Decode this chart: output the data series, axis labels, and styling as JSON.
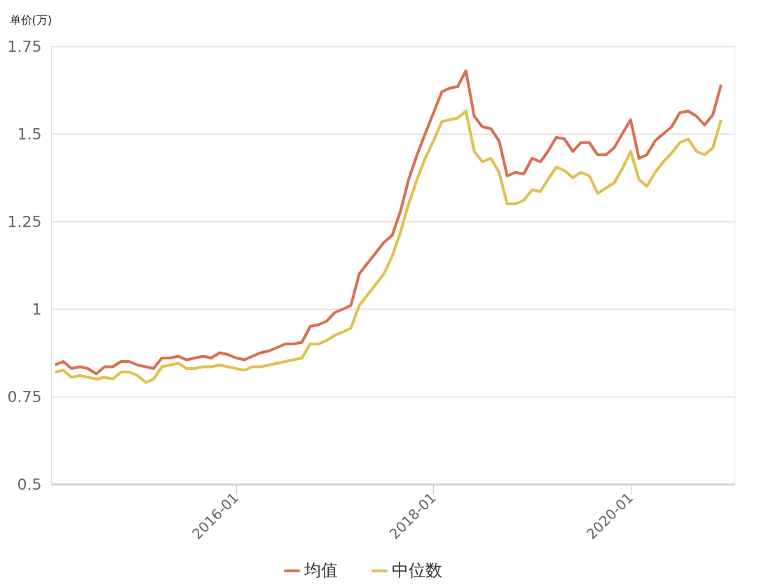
{
  "chart_data": {
    "type": "line",
    "ylabel": "单价(万)",
    "x": [
      "2014-03",
      "2014-04",
      "2014-05",
      "2014-06",
      "2014-07",
      "2014-08",
      "2014-09",
      "2014-10",
      "2014-11",
      "2014-12",
      "2015-01",
      "2015-02",
      "2015-03",
      "2015-04",
      "2015-05",
      "2015-06",
      "2015-07",
      "2015-08",
      "2015-09",
      "2015-10",
      "2015-11",
      "2015-12",
      "2016-01",
      "2016-02",
      "2016-03",
      "2016-04",
      "2016-05",
      "2016-06",
      "2016-07",
      "2016-08",
      "2016-09",
      "2016-10",
      "2016-11",
      "2016-12",
      "2017-01",
      "2017-02",
      "2017-03",
      "2017-04",
      "2017-05",
      "2017-06",
      "2017-07",
      "2017-08",
      "2017-09",
      "2017-10",
      "2017-11",
      "2017-12",
      "2018-01",
      "2018-02",
      "2018-03",
      "2018-04",
      "2018-05",
      "2018-06",
      "2018-07",
      "2018-08",
      "2018-09",
      "2018-10",
      "2018-11",
      "2018-12",
      "2019-01",
      "2019-02",
      "2019-03",
      "2019-04",
      "2019-05",
      "2019-06",
      "2019-07",
      "2019-08",
      "2019-09",
      "2019-10",
      "2019-11",
      "2019-12",
      "2020-01",
      "2020-02",
      "2020-03",
      "2020-04",
      "2020-05",
      "2020-06",
      "2020-07",
      "2020-08",
      "2020-09",
      "2020-10",
      "2020-11",
      "2020-12"
    ],
    "series": [
      {
        "name": "均值",
        "color": "#d9704f",
        "values": [
          0.84,
          0.85,
          0.83,
          0.835,
          0.83,
          0.815,
          0.835,
          0.835,
          0.85,
          0.85,
          0.84,
          0.835,
          0.83,
          0.86,
          0.86,
          0.865,
          0.855,
          0.86,
          0.865,
          0.86,
          0.875,
          0.87,
          0.86,
          0.855,
          0.865,
          0.875,
          0.88,
          0.89,
          0.9,
          0.9,
          0.905,
          0.95,
          0.955,
          0.965,
          0.99,
          1.0,
          1.01,
          1.1,
          1.13,
          1.16,
          1.19,
          1.21,
          1.28,
          1.37,
          1.44,
          1.5,
          1.56,
          1.62,
          1.63,
          1.635,
          1.68,
          1.55,
          1.52,
          1.515,
          1.48,
          1.38,
          1.39,
          1.385,
          1.43,
          1.42,
          1.45,
          1.49,
          1.485,
          1.45,
          1.475,
          1.475,
          1.44,
          1.44,
          1.46,
          1.5,
          1.54,
          1.43,
          1.44,
          1.48,
          1.5,
          1.52,
          1.56,
          1.565,
          1.55,
          1.525,
          1.555,
          1.64
        ]
      },
      {
        "name": "中位数",
        "color": "#e0c050",
        "values": [
          0.82,
          0.825,
          0.805,
          0.81,
          0.805,
          0.8,
          0.805,
          0.8,
          0.82,
          0.82,
          0.81,
          0.79,
          0.8,
          0.835,
          0.84,
          0.845,
          0.83,
          0.83,
          0.835,
          0.835,
          0.84,
          0.835,
          0.83,
          0.825,
          0.835,
          0.835,
          0.84,
          0.845,
          0.85,
          0.855,
          0.86,
          0.9,
          0.9,
          0.91,
          0.925,
          0.935,
          0.945,
          1.01,
          1.04,
          1.07,
          1.1,
          1.15,
          1.22,
          1.3,
          1.37,
          1.43,
          1.48,
          1.535,
          1.54,
          1.545,
          1.565,
          1.45,
          1.42,
          1.43,
          1.39,
          1.3,
          1.3,
          1.31,
          1.34,
          1.335,
          1.37,
          1.405,
          1.395,
          1.375,
          1.39,
          1.38,
          1.33,
          1.345,
          1.36,
          1.4,
          1.45,
          1.37,
          1.35,
          1.39,
          1.42,
          1.445,
          1.475,
          1.485,
          1.45,
          1.44,
          1.46,
          1.54
        ]
      }
    ],
    "xlim": [
      "2014-02-15",
      "2021-01-20"
    ],
    "xticks": [
      "2016-01",
      "2018-01",
      "2020-01"
    ],
    "ylim": [
      0.5,
      1.75
    ],
    "yticks": [
      0.5,
      0.75,
      1,
      1.25,
      1.5,
      1.75
    ],
    "grid": "y",
    "legend": "bottom",
    "marker": "none",
    "line_style": "solid"
  }
}
